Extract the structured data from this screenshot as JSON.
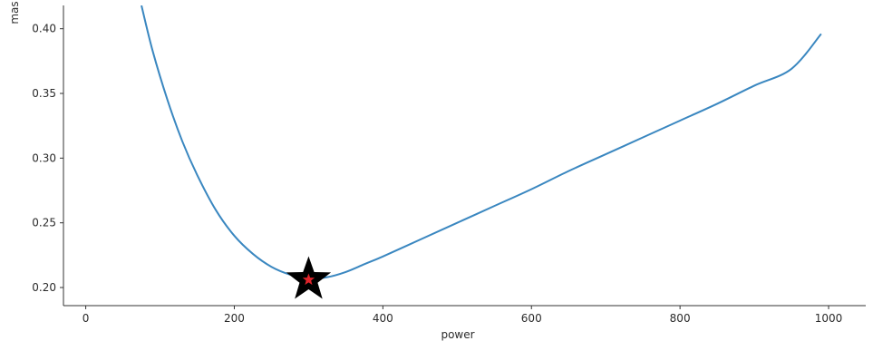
{
  "chart_data": {
    "type": "line",
    "xlabel": "power",
    "ylabel": "mas",
    "xlim": [
      -30,
      1050
    ],
    "ylim": [
      0.186,
      0.418
    ],
    "x_ticks": [
      0,
      200,
      400,
      600,
      800,
      1000
    ],
    "x_tick_labels": [
      "0",
      "200",
      "400",
      "600",
      "800",
      "1000"
    ],
    "y_ticks": [
      0.2,
      0.25,
      0.3,
      0.35,
      0.4
    ],
    "y_tick_labels": [
      "0.20",
      "0.25",
      "0.30",
      "0.35",
      "0.40"
    ],
    "grid": false,
    "line_color": "#3a87c0",
    "series": [
      {
        "x": [
          75,
          90,
          110,
          130,
          150,
          175,
          200,
          225,
          250,
          275,
          300,
          325,
          350,
          375,
          400,
          450,
          500,
          550,
          600,
          650,
          700,
          750,
          800,
          850,
          900,
          950,
          990
        ],
        "y": [
          0.418,
          0.383,
          0.345,
          0.313,
          0.287,
          0.26,
          0.24,
          0.226,
          0.216,
          0.21,
          0.207,
          0.208,
          0.212,
          0.218,
          0.224,
          0.237,
          0.25,
          0.263,
          0.276,
          0.29,
          0.303,
          0.316,
          0.329,
          0.342,
          0.356,
          0.369,
          0.396
        ]
      }
    ],
    "annotations": [
      {
        "marker": "star",
        "x": 300,
        "y": 0.206,
        "outer_color": "#000000",
        "inner_color": "#e0242b"
      }
    ]
  }
}
